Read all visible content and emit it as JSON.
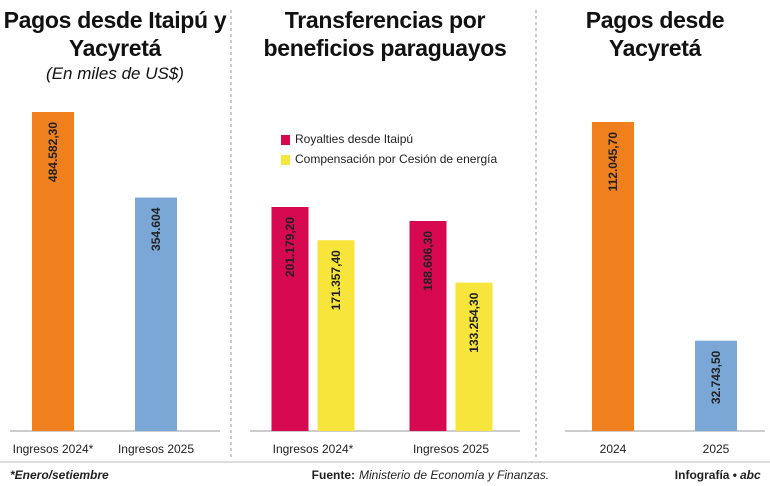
{
  "chart_data": [
    {
      "type": "bar",
      "title": "Pagos desde Itaipú y Yacyretá",
      "subtitle": "(En miles de US$)",
      "categories": [
        "Ingresos 2024*",
        "Ingresos 2025"
      ],
      "values": [
        484582.3,
        354604
      ],
      "value_labels": [
        "484.582,30",
        "354.604"
      ],
      "colors": [
        "#f07f1e",
        "#7aa7d6"
      ]
    },
    {
      "type": "grouped_bar",
      "title": "Transferencias por beneficios paraguayos",
      "categories": [
        "Ingresos 2024*",
        "Ingresos 2025"
      ],
      "series": [
        {
          "name": "Royalties desde Itaipú",
          "color": "#d6084f",
          "values": [
            201179.2,
            188606.3
          ],
          "value_labels": [
            "201.179,20",
            "188.606,30"
          ]
        },
        {
          "name": "Compensación por Cesión de energía",
          "color": "#f7e53b",
          "values": [
            171357.4,
            133254.3
          ],
          "value_labels": [
            "171.357,40",
            "133.254,30"
          ]
        }
      ]
    },
    {
      "type": "bar",
      "title": "Pagos desde Yacyretá",
      "categories": [
        "2024",
        "2025"
      ],
      "values": [
        112045.7,
        32743.5
      ],
      "value_labels": [
        "112.045,70",
        "32.743,50"
      ],
      "colors": [
        "#f07f1e",
        "#7aa7d6"
      ]
    }
  ],
  "footnote": "*Enero/setiembre",
  "source_label": "Fuente:",
  "source": "Ministerio de Economía y Finanzas.",
  "credit": "Infografía •",
  "logo": "abc"
}
